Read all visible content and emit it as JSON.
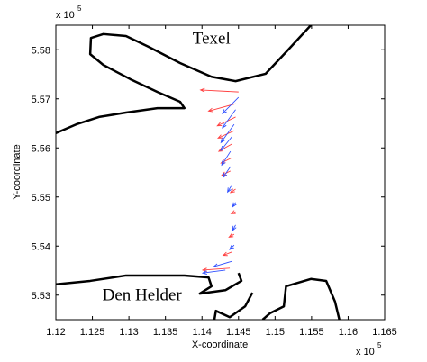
{
  "chart_data": {
    "type": "quiver",
    "xlabel": "X-coordinate",
    "ylabel": "Y-coordinate",
    "x_exponent": {
      "text": "x 10",
      "power": 5
    },
    "y_exponent": {
      "text": "x 10",
      "power": 5
    },
    "xlim": [
      1.12,
      1.165
    ],
    "ylim": [
      5.525,
      5.585
    ],
    "xticks": [
      1.12,
      1.125,
      1.13,
      1.135,
      1.14,
      1.145,
      1.15,
      1.155,
      1.16,
      1.165
    ],
    "yticks": [
      5.53,
      5.54,
      5.55,
      5.56,
      5.57,
      5.58
    ],
    "annotations": [
      {
        "text": "Texel",
        "x": 1.1413,
        "y": 5.5812
      },
      {
        "text": "Den Helder",
        "x": 1.1318,
        "y": 5.5289
      }
    ],
    "lines": [
      {
        "color": "#000000",
        "x": [
          1.1549,
          1.1518,
          1.1487,
          1.1446,
          1.1413,
          1.137,
          1.1327,
          1.1296,
          1.1265,
          1.1248,
          1.1247,
          1.1265,
          1.1302,
          1.1339,
          1.137,
          1.1376,
          1.1339,
          1.1296,
          1.1259,
          1.1228,
          1.12
        ],
        "y": [
          5.585,
          5.58,
          5.5751,
          5.5736,
          5.5745,
          5.5773,
          5.5806,
          5.5828,
          5.5832,
          5.5824,
          5.5791,
          5.5769,
          5.574,
          5.5714,
          5.5694,
          5.5681,
          5.5681,
          5.5672,
          5.5663,
          5.5648,
          5.563
        ]
      },
      {
        "color": "#000000",
        "x": [
          1.12,
          1.1247,
          1.1296,
          1.1376,
          1.1409,
          1.1413,
          1.1397,
          1.1432,
          1.1454,
          1.145
        ],
        "y": [
          5.5322,
          5.5329,
          5.534,
          5.534,
          5.5336,
          5.5318,
          5.5303,
          5.531,
          5.5329,
          5.5345
        ]
      },
      {
        "color": "#000000",
        "x": [
          1.1417,
          1.1419,
          1.1438,
          1.1459,
          1.1469
        ],
        "y": [
          5.525,
          5.5268,
          5.5255,
          5.5277,
          5.5305
        ]
      },
      {
        "color": "#000000",
        "x": [
          1.1483,
          1.1493,
          1.1512,
          1.1515,
          1.1549,
          1.157,
          1.1582,
          1.1588
        ],
        "y": [
          5.525,
          5.5263,
          5.5277,
          5.5318,
          5.5333,
          5.5329,
          5.5287,
          5.525
        ]
      }
    ],
    "series": [
      {
        "color": "#ff4040",
        "x": [
          1.145,
          1.1446,
          1.1446,
          1.1444,
          1.1441,
          1.1441,
          1.1439,
          1.1446,
          1.1446,
          1.1444,
          1.1441,
          1.1438
        ],
        "y": [
          5.5714,
          5.569,
          5.5663,
          5.5635,
          5.5608,
          5.558,
          5.5553,
          5.5516,
          5.547,
          5.5424,
          5.5388,
          5.5355
        ],
        "u": [
          -0.0052,
          -0.0037,
          -0.0025,
          -0.0022,
          -0.0018,
          -0.0015,
          -0.0012,
          -0.0007,
          -0.0006,
          -0.0007,
          -0.0012,
          -0.0037
        ],
        "v": [
          0.0004,
          -0.0015,
          -0.0018,
          -0.0015,
          -0.0015,
          -0.0011,
          -0.0009,
          -0.0007,
          -0.0004,
          -0.0006,
          -0.0007,
          -0.0004
        ]
      },
      {
        "color": "#3050ff",
        "x": [
          1.145,
          1.1446,
          1.1444,
          1.1441,
          1.1439,
          1.1439,
          1.1441,
          1.1446,
          1.1446,
          1.1444,
          1.1441,
          1.1432
        ],
        "y": [
          5.5703,
          5.5678,
          5.5648,
          5.5623,
          5.5593,
          5.5562,
          5.5525,
          5.5489,
          5.5443,
          5.5402,
          5.5369,
          5.5351
        ],
        "u": [
          -0.0022,
          -0.0018,
          -0.0018,
          -0.0015,
          -0.0012,
          -0.001,
          -0.0006,
          -0.0004,
          -0.0004,
          -0.0006,
          -0.0025,
          -0.0031
        ],
        "v": [
          -0.0033,
          -0.0037,
          -0.0037,
          -0.0028,
          -0.0028,
          -0.0022,
          -0.0015,
          -0.0009,
          -0.0011,
          -0.0009,
          -0.0011,
          -0.0006
        ]
      }
    ]
  }
}
